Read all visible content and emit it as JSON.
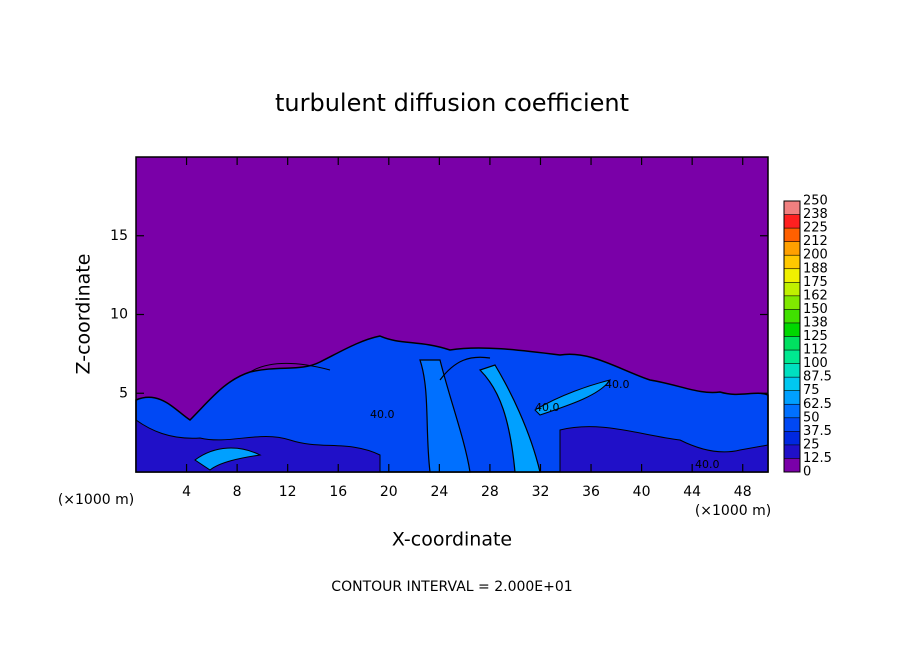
{
  "chart_data": {
    "type": "contour",
    "title": "turbulent diffusion coefficient",
    "x_label": "X-coordinate",
    "y_label": "Z-coordinate",
    "x_unit": "(×1000 m)",
    "y_unit": "(×1000 m)",
    "footer": "CONTOUR INTERVAL = 2.000E+01",
    "contour_labels": [
      "40.0",
      "40.0",
      "40.0",
      "40.0"
    ],
    "xlim": [
      0,
      50
    ],
    "xticks": [
      4,
      8,
      12,
      16,
      20,
      24,
      28,
      32,
      36,
      40,
      44,
      48
    ],
    "ylim": [
      0,
      20
    ],
    "yticks": [
      5,
      10,
      15
    ],
    "colorbar": {
      "levels": [
        0,
        12.5,
        25,
        37.5,
        50,
        62.5,
        75,
        87.5,
        100,
        {
          "value": 112.5,
          "label": "112"
        },
        125,
        {
          "value": 137.5,
          "label": "138"
        },
        150,
        {
          "value": 162.5,
          "label": "162"
        },
        175,
        {
          "value": 187.5,
          "label": "188"
        },
        200,
        {
          "value": 212.5,
          "label": "212"
        },
        225,
        {
          "value": 237.5,
          "label": "238"
        },
        250
      ],
      "colors": [
        "#7a00a8",
        "#2010c8",
        "#0028e0",
        "#0048f4",
        "#0070ff",
        "#00a0ff",
        "#00c8f0",
        "#00e0c0",
        "#00e890",
        "#00e060",
        "#00d800",
        "#40e000",
        "#80e800",
        "#c0f000",
        "#f0f000",
        "#ffc800",
        "#ffa000",
        "#ff6000",
        "#ff2020",
        "#f08080"
      ]
    }
  }
}
